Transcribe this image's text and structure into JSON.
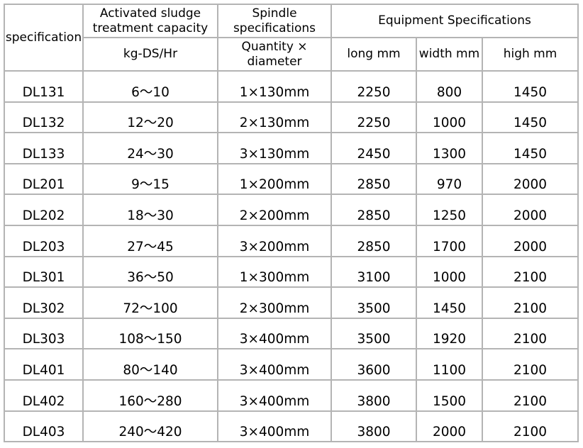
{
  "header": {
    "specification": "specification",
    "capacity": "Activated sludge treatment capacity",
    "capacity_unit": "kg-DS/Hr",
    "spindle": "Spindle specifications",
    "spindle_unit": "Quantity × diameter",
    "equipment": "Equipment Specifications",
    "long": "long mm",
    "width": "width mm",
    "high": "high mm"
  },
  "rows": [
    {
      "model": "DL131",
      "capacity": "6～10",
      "spindle": "1×130mm",
      "long": "2250",
      "width": "800",
      "high": "1450"
    },
    {
      "model": "DL132",
      "capacity": "12～20",
      "spindle": "2×130mm",
      "long": "2250",
      "width": "1000",
      "high": "1450"
    },
    {
      "model": "DL133",
      "capacity": "24～30",
      "spindle": "3×130mm",
      "long": "2450",
      "width": "1300",
      "high": "1450"
    },
    {
      "model": "DL201",
      "capacity": "9～15",
      "spindle": "1×200mm",
      "long": "2850",
      "width": "970",
      "high": "2000"
    },
    {
      "model": "DL202",
      "capacity": "18～30",
      "spindle": "2×200mm",
      "long": "2850",
      "width": "1250",
      "high": "2000"
    },
    {
      "model": "DL203",
      "capacity": "27～45",
      "spindle": "3×200mm",
      "long": "2850",
      "width": "1700",
      "high": "2000"
    },
    {
      "model": "DL301",
      "capacity": "36～50",
      "spindle": "1×300mm",
      "long": "3100",
      "width": "1000",
      "high": "2100"
    },
    {
      "model": "DL302",
      "capacity": "72～100",
      "spindle": "2×300mm",
      "long": "3500",
      "width": "1450",
      "high": "2100"
    },
    {
      "model": "DL303",
      "capacity": "108～150",
      "spindle": "3×400mm",
      "long": "3500",
      "width": "1920",
      "high": "2100"
    },
    {
      "model": "DL401",
      "capacity": "80～140",
      "spindle": "3×400mm",
      "long": "3600",
      "width": "1100",
      "high": "2100"
    },
    {
      "model": "DL402",
      "capacity": "160～280",
      "spindle": "3×400mm",
      "long": "3800",
      "width": "1500",
      "high": "2100"
    },
    {
      "model": "DL403",
      "capacity": "240～420",
      "spindle": "3×400mm",
      "long": "3800",
      "width": "2000",
      "high": "2100"
    }
  ]
}
